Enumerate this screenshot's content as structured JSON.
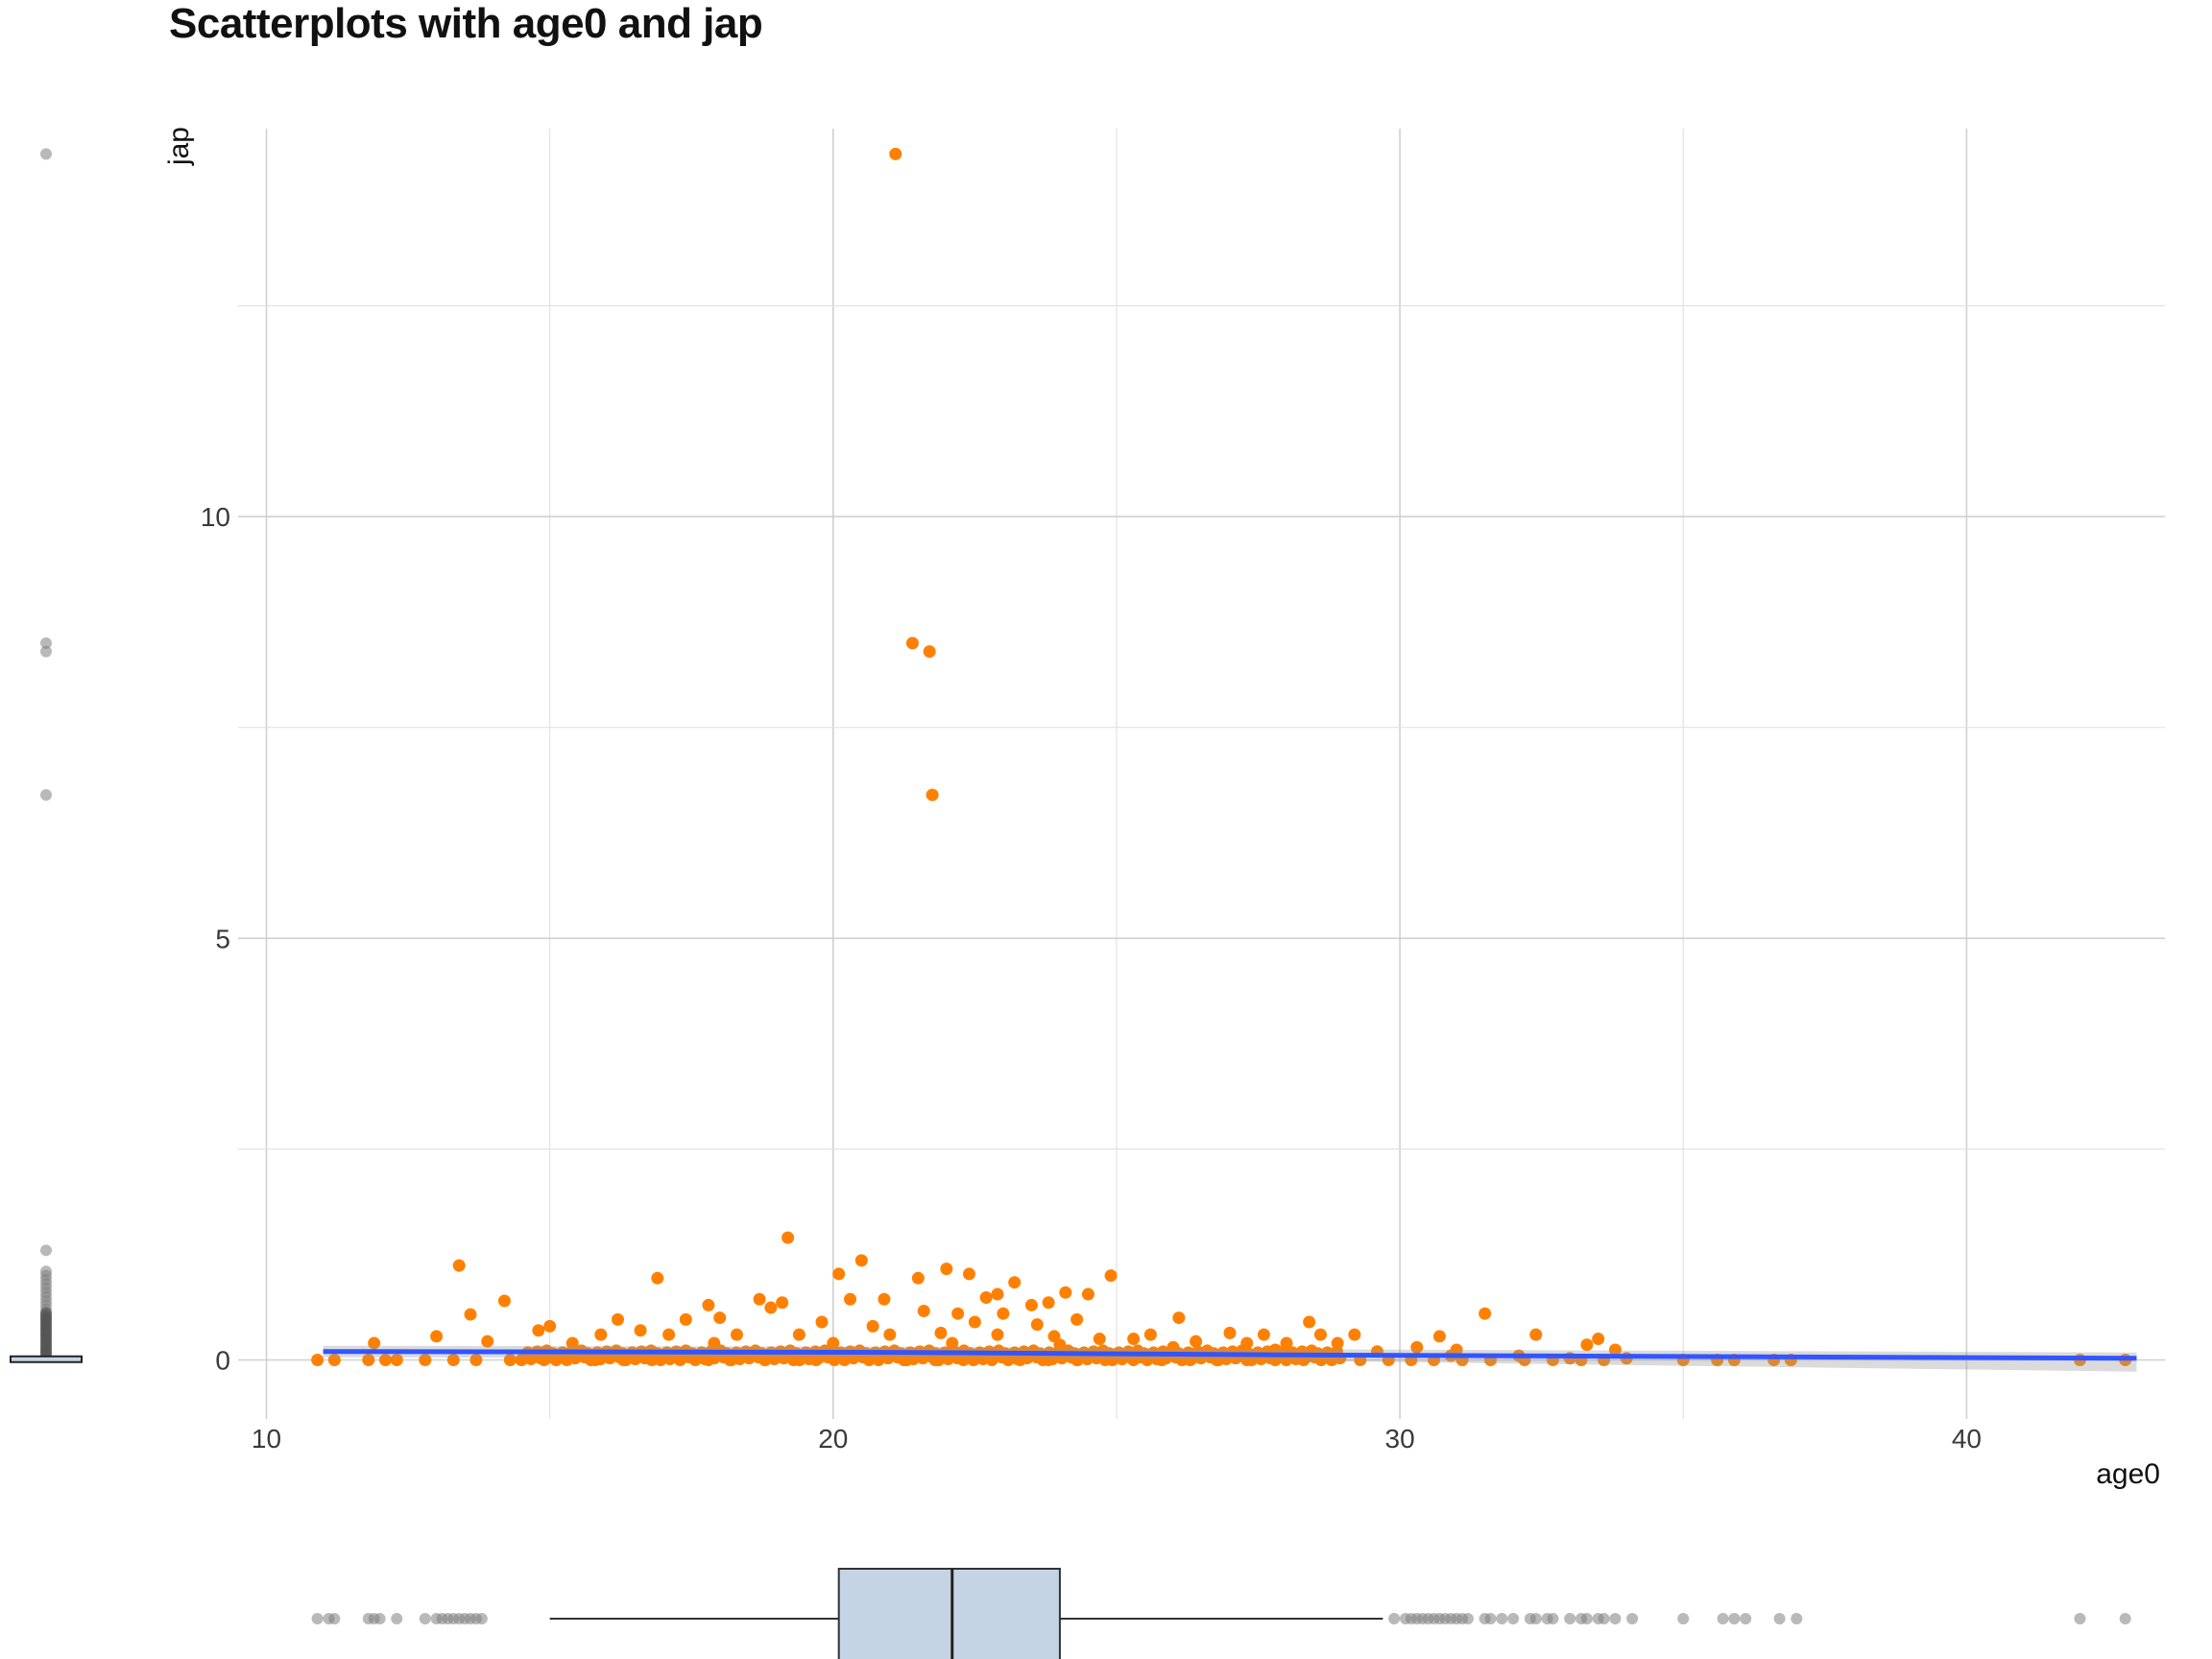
{
  "chart_data": {
    "type": "scatter",
    "title": "Scatterplots with age0 and jap",
    "xlabel": "age0",
    "ylabel": "jap",
    "xlim": [
      9.5,
      43.5
    ],
    "ylim": [
      -0.7,
      14.6
    ],
    "x_ticks": [
      10,
      20,
      30,
      40
    ],
    "y_ticks": [
      0,
      5,
      10
    ],
    "grid": true,
    "colors": {
      "points": "#FF8000",
      "trend": "#3355FF",
      "box_fill": "#C5D4E5",
      "outlier": "#808080"
    },
    "points": [
      [
        21.1,
        14.3
      ],
      [
        21.4,
        8.5
      ],
      [
        21.7,
        8.4
      ],
      [
        21.75,
        6.7
      ],
      [
        19.2,
        1.45
      ],
      [
        20.5,
        1.18
      ],
      [
        20.1,
        1.02
      ],
      [
        22.0,
        1.08
      ],
      [
        22.4,
        1.02
      ],
      [
        23.2,
        0.92
      ],
      [
        24.9,
        1.0
      ],
      [
        13.4,
        1.12
      ],
      [
        16.9,
        0.97
      ],
      [
        21.5,
        0.97
      ],
      [
        24.1,
        0.8
      ],
      [
        24.5,
        0.78
      ],
      [
        22.9,
        0.78
      ],
      [
        22.7,
        0.74
      ],
      [
        23.8,
        0.68
      ],
      [
        23.5,
        0.65
      ],
      [
        20.3,
        0.72
      ],
      [
        20.9,
        0.72
      ],
      [
        18.7,
        0.72
      ],
      [
        19.1,
        0.68
      ],
      [
        18.9,
        0.62
      ],
      [
        14.2,
        0.7
      ],
      [
        17.8,
        0.65
      ],
      [
        18.0,
        0.5
      ],
      [
        22.2,
        0.55
      ],
      [
        21.6,
        0.58
      ],
      [
        23.0,
        0.55
      ],
      [
        24.3,
        0.48
      ],
      [
        26.1,
        0.5
      ],
      [
        31.5,
        0.55
      ],
      [
        13.6,
        0.54
      ],
      [
        16.2,
        0.48
      ],
      [
        17.4,
        0.48
      ],
      [
        28.4,
        0.45
      ],
      [
        14.8,
        0.35
      ],
      [
        15.0,
        0.4
      ],
      [
        19.8,
        0.45
      ],
      [
        20.7,
        0.4
      ],
      [
        22.5,
        0.45
      ],
      [
        23.6,
        0.42
      ],
      [
        25.6,
        0.3
      ],
      [
        27.0,
        0.32
      ],
      [
        27.6,
        0.3
      ],
      [
        28.6,
        0.3
      ],
      [
        29.2,
        0.3
      ],
      [
        30.7,
        0.28
      ],
      [
        32.4,
        0.3
      ],
      [
        33.5,
        0.25
      ],
      [
        33.3,
        0.18
      ],
      [
        13.0,
        0.28
      ],
      [
        11.9,
        0.2
      ],
      [
        15.9,
        0.3
      ],
      [
        16.6,
        0.35
      ],
      [
        17.1,
        0.3
      ],
      [
        18.3,
        0.3
      ],
      [
        19.4,
        0.3
      ],
      [
        21.0,
        0.3
      ],
      [
        21.9,
        0.32
      ],
      [
        22.9,
        0.3
      ],
      [
        23.9,
        0.28
      ],
      [
        24.7,
        0.25
      ],
      [
        25.3,
        0.25
      ],
      [
        26.4,
        0.22
      ],
      [
        27.3,
        0.2
      ],
      [
        28.0,
        0.2
      ],
      [
        28.9,
        0.2
      ],
      [
        30.3,
        0.15
      ],
      [
        31.0,
        0.12
      ],
      [
        33.8,
        0.12
      ],
      [
        13.9,
        0.22
      ],
      [
        15.4,
        0.2
      ],
      [
        17.9,
        0.2
      ],
      [
        20.0,
        0.2
      ],
      [
        22.1,
        0.2
      ],
      [
        24.0,
        0.18
      ],
      [
        26.0,
        0.15
      ],
      [
        27.8,
        0.12
      ],
      [
        29.6,
        0.1
      ],
      [
        30.9,
        0.05
      ],
      [
        32.1,
        0.05
      ],
      [
        33.0,
        0.02
      ],
      [
        34.0,
        0.02
      ],
      [
        35.0,
        0.0
      ],
      [
        35.6,
        0.0
      ],
      [
        35.9,
        0.0
      ],
      [
        36.6,
        0.0
      ],
      [
        36.9,
        0.0
      ],
      [
        42.0,
        0.0
      ],
      [
        42.8,
        0.0
      ],
      [
        10.9,
        0.0
      ],
      [
        11.2,
        0.0
      ],
      [
        11.8,
        0.0
      ],
      [
        12.1,
        0.0
      ],
      [
        12.3,
        0.0
      ],
      [
        12.8,
        0.0
      ],
      [
        13.3,
        0.0
      ],
      [
        13.7,
        0.0
      ],
      [
        14.3,
        0.0
      ],
      [
        14.9,
        0.0
      ],
      [
        15.3,
        0.0
      ],
      [
        15.8,
        0.0
      ],
      [
        16.3,
        0.0
      ],
      [
        16.8,
        0.0
      ],
      [
        17.3,
        0.0
      ],
      [
        17.8,
        0.0
      ],
      [
        18.2,
        0.0
      ],
      [
        18.8,
        0.0
      ],
      [
        19.3,
        0.0
      ],
      [
        19.7,
        0.0
      ],
      [
        20.2,
        0.0
      ],
      [
        20.8,
        0.0
      ],
      [
        21.3,
        0.0
      ],
      [
        21.8,
        0.0
      ],
      [
        22.3,
        0.0
      ],
      [
        22.8,
        0.0
      ],
      [
        23.3,
        0.0
      ],
      [
        23.8,
        0.0
      ],
      [
        24.3,
        0.0
      ],
      [
        24.8,
        0.0
      ],
      [
        25.3,
        0.0
      ],
      [
        25.8,
        0.0
      ],
      [
        26.3,
        0.0
      ],
      [
        26.8,
        0.0
      ],
      [
        27.3,
        0.0
      ],
      [
        27.8,
        0.0
      ],
      [
        28.3,
        0.0
      ],
      [
        28.8,
        0.0
      ],
      [
        29.3,
        0.0
      ],
      [
        29.8,
        0.0
      ],
      [
        30.2,
        0.0
      ],
      [
        30.6,
        0.0
      ],
      [
        31.1,
        0.0
      ],
      [
        31.6,
        0.0
      ],
      [
        32.2,
        0.0
      ],
      [
        32.7,
        0.0
      ],
      [
        33.2,
        0.0
      ],
      [
        33.6,
        0.0
      ]
    ],
    "trend_line": [
      [
        11.0,
        0.1
      ],
      [
        21.0,
        0.09
      ],
      [
        28.0,
        0.06
      ],
      [
        43.0,
        0.02
      ]
    ],
    "x_boxplot": {
      "q1": 20.1,
      "median": 22.1,
      "q3": 24.0,
      "whisker_low": 15.0,
      "whisker_high": 29.7,
      "outliers": [
        10.9,
        11.1,
        11.2,
        11.8,
        11.9,
        12.0,
        12.3,
        12.8,
        13.0,
        13.1,
        13.2,
        13.3,
        13.4,
        13.5,
        13.6,
        13.7,
        13.8,
        29.9,
        30.1,
        30.2,
        30.3,
        30.4,
        30.5,
        30.6,
        30.7,
        30.8,
        30.9,
        31.0,
        31.1,
        31.2,
        31.5,
        31.6,
        31.8,
        32.0,
        32.3,
        32.4,
        32.6,
        32.7,
        33.0,
        33.2,
        33.3,
        33.5,
        33.6,
        33.8,
        34.1,
        35.0,
        35.7,
        35.9,
        36.1,
        36.7,
        37.0,
        42.0,
        42.8
      ]
    },
    "y_boxplot": {
      "q1": 0.0,
      "median": 0.0,
      "q3": 0.02,
      "whisker_low": 0.0,
      "whisker_high": 0.05,
      "outliers": [
        14.3,
        8.5,
        8.4,
        6.7,
        1.3,
        1.05,
        1.0,
        0.95,
        0.9,
        0.85,
        0.8,
        0.75,
        0.7,
        0.65,
        0.6,
        0.55,
        0.5,
        0.45,
        0.4,
        0.35,
        0.3,
        0.25,
        0.2,
        0.15,
        0.1,
        0.08
      ]
    }
  }
}
